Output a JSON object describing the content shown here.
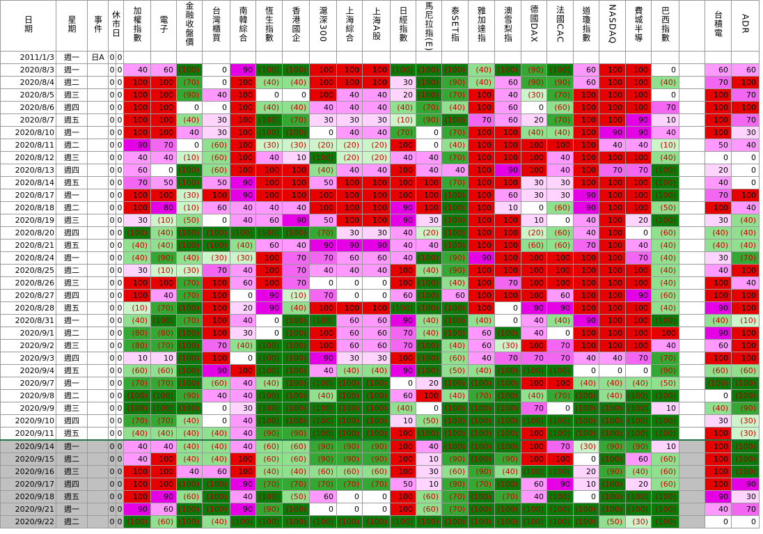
{
  "header": {
    "date": "日期",
    "weekday": "星期",
    "event": "事件",
    "holiday": "休市日",
    "markets": [
      "加權指數",
      "電子",
      "金融收盤價",
      "台灣櫃買",
      "南韓綜合",
      "恆生指數",
      "香港國企",
      "滬深300",
      "上海綜合",
      "上海A股",
      "日經指數",
      "馬尼拉指(E)",
      "泰SET指",
      "雅加達指",
      "澳雪梨指",
      "德國DAX",
      "法國CAC",
      "道瓊指數",
      "NASDAQ",
      "費城半導",
      "巴西指數",
      "台積電",
      "ADR"
    ]
  },
  "rows": [
    {
      "date": "2011/1/3",
      "weekday": "週一",
      "event": "日A",
      "holiday": [
        "0",
        "0"
      ]
    },
    {
      "date": "2020/8/3",
      "weekday": "週一",
      "holiday": [
        "0",
        "0"
      ],
      "values": [
        "40",
        "60",
        "(100)",
        "0",
        "90",
        "(100)",
        "(100)",
        "100",
        "100",
        "100",
        "(100)",
        "(100)",
        "(100)",
        "(40)",
        "(100)",
        "(90)",
        "(100)",
        "60",
        "100",
        "100",
        "0",
        "60",
        "60"
      ]
    },
    {
      "date": "2020/8/4",
      "weekday": "週二",
      "holiday": [
        "0",
        "0"
      ],
      "values": [
        "100",
        "100",
        "(70)",
        "0",
        "100",
        "(40)",
        "(40)",
        "100",
        "100",
        "100",
        "30",
        "(100)",
        "(90)",
        "(40)",
        "60",
        "(90)",
        "(90)",
        "60",
        "100",
        "100",
        "(40)",
        "70",
        "100"
      ]
    },
    {
      "date": "2020/8/5",
      "weekday": "週三",
      "holiday": [
        "0",
        "0"
      ],
      "values": [
        "100",
        "100",
        "(90)",
        "40",
        "100",
        "0",
        "0",
        "100",
        "40",
        "40",
        "20",
        "(100)",
        "(70)",
        "100",
        "40",
        "(30)",
        "(70)",
        "100",
        "100",
        "100",
        "0",
        "100",
        "70"
      ]
    },
    {
      "date": "2020/8/6",
      "weekday": "週四",
      "holiday": [
        "0",
        "0"
      ],
      "values": [
        "100",
        "100",
        "0",
        "0",
        "100",
        "(40)",
        "(40)",
        "40",
        "40",
        "40",
        "(40)",
        "(70)",
        "(40)",
        "100",
        "60",
        "0",
        "(60)",
        "100",
        "100",
        "100",
        "70",
        "100",
        "100"
      ]
    },
    {
      "date": "2020/8/7",
      "weekday": "週五",
      "holiday": [
        "0",
        "0"
      ],
      "values": [
        "100",
        "100",
        "(40)",
        "30",
        "100",
        "(100)",
        "(70)",
        "30",
        "30",
        "30",
        "(10)",
        "(90)",
        "(100)",
        "70",
        "60",
        "20",
        "(70)",
        "100",
        "100",
        "90",
        "10",
        "100",
        "70"
      ]
    },
    {
      "date": "2020/8/10",
      "weekday": "週一",
      "holiday": [
        "0",
        "0"
      ],
      "values": [
        "100",
        "100",
        "40",
        "30",
        "100",
        "(100)",
        "(100)",
        "0",
        "40",
        "40",
        "(70)",
        "0",
        "(70)",
        "100",
        "100",
        "(40)",
        "(40)",
        "100",
        "90",
        "90",
        "40",
        "100",
        "30"
      ]
    },
    {
      "date": "2020/8/11",
      "weekday": "週二",
      "holiday": [
        "0",
        "0"
      ],
      "values": [
        "90",
        "70",
        "0",
        "(60)",
        "100",
        "(30)",
        "(30)",
        "(20)",
        "(20)",
        "(20)",
        "100",
        "0",
        "(40)",
        "100",
        "100",
        "100",
        "100",
        "100",
        "40",
        "40",
        "(10)",
        "50",
        "40"
      ]
    },
    {
      "date": "2020/8/12",
      "weekday": "週三",
      "holiday": [
        "0",
        "0"
      ],
      "values": [
        "40",
        "40",
        "(10)",
        "(60)",
        "100",
        "40",
        "10",
        "(100)",
        "(20)",
        "(20)",
        "40",
        "40",
        "(70)",
        "100",
        "100",
        "100",
        "40",
        "100",
        "100",
        "100",
        "(40)",
        "0",
        "0"
      ]
    },
    {
      "date": "2020/8/13",
      "weekday": "週四",
      "holiday": [
        "0",
        "0"
      ],
      "values": [
        "60",
        "0",
        "(100)",
        "(60)",
        "100",
        "100",
        "100",
        "(40)",
        "40",
        "40",
        "100",
        "40",
        "40",
        "100",
        "90",
        "100",
        "40",
        "100",
        "70",
        "70",
        "(100)",
        "20",
        "0"
      ]
    },
    {
      "date": "2020/8/14",
      "weekday": "週五",
      "holiday": [
        "0",
        "0"
      ],
      "values": [
        "70",
        "50",
        "(100)",
        "50",
        "90",
        "100",
        "100",
        "50",
        "100",
        "100",
        "100",
        "100",
        "(70)",
        "100",
        "100",
        "30",
        "30",
        "100",
        "100",
        "100",
        "(100)",
        "40",
        "0"
      ]
    },
    {
      "date": "2020/8/17",
      "weekday": "週一",
      "holiday": [
        "0",
        "0"
      ],
      "values": [
        "100",
        "100",
        "(30)",
        "100",
        "90",
        "100",
        "100",
        "100",
        "100",
        "100",
        "100",
        "100",
        "(100)",
        "100",
        "60",
        "30",
        "30",
        "90",
        "100",
        "100",
        "(100)",
        "70",
        "100"
      ]
    },
    {
      "date": "2020/8/18",
      "weekday": "週二",
      "holiday": [
        "0",
        "0"
      ],
      "values": [
        "100",
        "80",
        "(10)",
        "60",
        "40",
        "40",
        "40",
        "100",
        "100",
        "100",
        "90",
        "100",
        "(100)",
        "100",
        "10",
        "0",
        "(60)",
        "90",
        "100",
        "100",
        "(50)",
        "100",
        "40"
      ]
    },
    {
      "date": "2020/8/19",
      "weekday": "週三",
      "holiday": [
        "0",
        "0"
      ],
      "values": [
        "30",
        "(10)",
        "(50)",
        "0",
        "40",
        "60",
        "90",
        "50",
        "100",
        "100",
        "90",
        "30",
        "(100)",
        "100",
        "100",
        "10",
        "0",
        "40",
        "100",
        "20",
        "(100)",
        "30",
        "(40)"
      ]
    },
    {
      "date": "2020/8/20",
      "weekday": "週四",
      "holiday": [
        "0",
        "0"
      ],
      "values": [
        "(100)",
        "(40)",
        "(100)",
        "(100)",
        "(100)",
        "(100)",
        "(100)",
        "(70)",
        "30",
        "30",
        "40",
        "(20)",
        "(100)",
        "100",
        "100",
        "(20)",
        "(60)",
        "40",
        "100",
        "0",
        "(60)",
        "(40)",
        "(40)"
      ]
    },
    {
      "date": "2020/8/21",
      "weekday": "週五",
      "holiday": [
        "0",
        "0"
      ],
      "values": [
        "(40)",
        "(40)",
        "(100)",
        "(100)",
        "(40)",
        "60",
        "40",
        "90",
        "90",
        "90",
        "40",
        "40",
        "(100)",
        "100",
        "100",
        "(60)",
        "(60)",
        "70",
        "100",
        "40",
        "(40)",
        "(40)",
        "(40)"
      ]
    },
    {
      "date": "2020/8/24",
      "weekday": "週一",
      "holiday": [
        "0",
        "0"
      ],
      "values": [
        "(40)",
        "(90)",
        "(40)",
        "(30)",
        "(30)",
        "100",
        "70",
        "70",
        "60",
        "60",
        "40",
        "(100)",
        "(90)",
        "90",
        "100",
        "100",
        "100",
        "100",
        "100",
        "70",
        "(40)",
        "30",
        "(70)"
      ]
    },
    {
      "date": "2020/8/25",
      "weekday": "週二",
      "holiday": [
        "0",
        "0"
      ],
      "values": [
        "30",
        "(10)",
        "(30)",
        "70",
        "40",
        "100",
        "70",
        "40",
        "40",
        "40",
        "100",
        "(40)",
        "(90)",
        "100",
        "100",
        "100",
        "100",
        "100",
        "100",
        "100",
        "(40)",
        "40",
        "100"
      ]
    },
    {
      "date": "2020/8/26",
      "weekday": "週三",
      "holiday": [
        "0",
        "0"
      ],
      "values": [
        "100",
        "100",
        "(70)",
        "100",
        "60",
        "100",
        "70",
        "0",
        "0",
        "0",
        "100",
        "(100)",
        "(40)",
        "100",
        "70",
        "100",
        "100",
        "100",
        "100",
        "100",
        "(40)",
        "100",
        "40"
      ]
    },
    {
      "date": "2020/8/27",
      "weekday": "週四",
      "holiday": [
        "0",
        "0"
      ],
      "values": [
        "100",
        "40",
        "(70)",
        "100",
        "0",
        "90",
        "(10)",
        "70",
        "0",
        "0",
        "60",
        "(100)",
        "60",
        "100",
        "100",
        "100",
        "60",
        "100",
        "100",
        "90",
        "(60)",
        "100",
        "100"
      ]
    },
    {
      "date": "2020/8/28",
      "weekday": "週五",
      "holiday": [
        "0",
        "0"
      ],
      "values": [
        "(10)",
        "(70)",
        "(100)",
        "100",
        "20",
        "90",
        "(40)",
        "100",
        "100",
        "100",
        "(100)",
        "(100)",
        "(100)",
        "100",
        "0",
        "90",
        "90",
        "100",
        "100",
        "100",
        "(40)",
        "90",
        "100"
      ]
    },
    {
      "date": "2020/8/31",
      "weekday": "週一",
      "holiday": [
        "0",
        "0"
      ],
      "values": [
        "(40)",
        "(100)",
        "(70)",
        "100",
        "40",
        "0",
        "(100)",
        "(100)",
        "60",
        "60",
        "90",
        "(40)",
        "(100)",
        "(40)",
        "0",
        "40",
        "(40)",
        "90",
        "100",
        "100",
        "(100)",
        "(40)",
        "(10)"
      ]
    },
    {
      "date": "2020/9/1",
      "weekday": "週二",
      "holiday": [
        "0",
        "0"
      ],
      "values": [
        "(80)",
        "(80)",
        "(100)",
        "100",
        "30",
        "0",
        "(100)",
        "100",
        "60",
        "60",
        "70",
        "(40)",
        "(100)",
        "60",
        "(100)",
        "40",
        "0",
        "100",
        "100",
        "100",
        "100",
        "90",
        "100"
      ]
    },
    {
      "date": "2020/9/2",
      "weekday": "週三",
      "holiday": [
        "0",
        "0"
      ],
      "values": [
        "(80)",
        "(70)",
        "(100)",
        "70",
        "(40)",
        "(100)",
        "(100)",
        "100",
        "60",
        "60",
        "70",
        "(100)",
        "(40)",
        "60",
        "(30)",
        "100",
        "70",
        "100",
        "100",
        "100",
        "40",
        "60",
        "100"
      ]
    },
    {
      "date": "2020/9/3",
      "weekday": "週四",
      "holiday": [
        "0",
        "0"
      ],
      "values": [
        "10",
        "10",
        "(100)",
        "100",
        "0",
        "(100)",
        "(100)",
        "90",
        "30",
        "30",
        "100",
        "(100)",
        "(60)",
        "40",
        "70",
        "70",
        "70",
        "40",
        "40",
        "70",
        "(70)",
        "100",
        "100"
      ]
    },
    {
      "date": "2020/9/4",
      "weekday": "週五",
      "holiday": [
        "0",
        "0"
      ],
      "values": [
        "(60)",
        "(60)",
        "(100)",
        "90",
        "100",
        "(100)",
        "(100)",
        "40",
        "(40)",
        "(40)",
        "90",
        "(100)",
        "(50)",
        "(40)",
        "(100)",
        "(100)",
        "(100)",
        "0",
        "0",
        "0",
        "(90)",
        "(60)",
        "(60)"
      ]
    },
    {
      "date": "2020/9/7",
      "weekday": "週一",
      "holiday": [
        "0",
        "0"
      ],
      "values": [
        "(70)",
        "(70)",
        "(100)",
        "(60)",
        "40",
        "(40)",
        "(100)",
        "(100)",
        "(100)",
        "(100)",
        "0",
        "20",
        "(100)",
        "(100)",
        "(100)",
        "100",
        "100",
        "(40)",
        "(40)",
        "(40)",
        "(50)",
        "(100)",
        "(100)"
      ]
    },
    {
      "date": "2020/9/8",
      "weekday": "週二",
      "holiday": [
        "0",
        "0"
      ],
      "values": [
        "(100)",
        "(100)",
        "(90)",
        "40",
        "40",
        "(100)",
        "(100)",
        "(40)",
        "(100)",
        "(100)",
        "60",
        "100",
        "(40)",
        "(70)",
        "(100)",
        "(40)",
        "(70)",
        "(100)",
        "(40)",
        "(100)",
        "(100)",
        "0",
        "(100)"
      ]
    },
    {
      "date": "2020/9/9",
      "weekday": "週三",
      "holiday": [
        "0",
        "0"
      ],
      "values": [
        "(100)",
        "(100)",
        "(100)",
        "0",
        "30",
        "(100)",
        "(100)",
        "(100)",
        "(100)",
        "(100)",
        "(40)",
        "0",
        "(100)",
        "(100)",
        "(100)",
        "70",
        "0",
        "(100)",
        "(100)",
        "(100)",
        "10",
        "(40)",
        "(90)"
      ]
    },
    {
      "date": "2020/9/10",
      "weekday": "週四",
      "holiday": [
        "0",
        "0"
      ],
      "values": [
        "(70)",
        "(70)",
        "(40)",
        "0",
        "40",
        "(100)",
        "(100)",
        "(100)",
        "(100)",
        "(100)",
        "10",
        "(50)",
        "(100)",
        "(100)",
        "(100)",
        "(100)",
        "(100)",
        "(100)",
        "(100)",
        "(100)",
        "(100)",
        "30",
        "(30)"
      ]
    },
    {
      "date": "2020/9/11",
      "weekday": "週五",
      "holiday": [
        "0",
        "0"
      ],
      "values": [
        "(40)",
        "(40)",
        "(40)",
        "(40)",
        "40",
        "(90)",
        "(90)",
        "(100)",
        "(100)",
        "(100)",
        "100",
        "(100)",
        "(100)",
        "(100)",
        "(100)",
        "100",
        "(100)",
        "(100)",
        "(100)",
        "(100)",
        "(100)",
        "100",
        "(30)"
      ]
    },
    {
      "date": "2020/9/14",
      "weekday": "週一",
      "holiday": [
        "0",
        "0"
      ],
      "values": [
        "40",
        "40",
        "(40)",
        "(40)",
        "40",
        "(60)",
        "(60)",
        "(90)",
        "(90)",
        "(90)",
        "100",
        "40",
        "(100)",
        "(100)",
        "(100)",
        "100",
        "70",
        "(30)",
        "(90)",
        "(90)",
        "10",
        "100",
        "(100)"
      ]
    },
    {
      "date": "2020/9/15",
      "weekday": "週二",
      "holiday": [
        "0",
        "0"
      ],
      "values": [
        "40",
        "100",
        "(40)",
        "(40)",
        "100",
        "(60)",
        "(60)",
        "(90)",
        "(90)",
        "(90)",
        "100",
        "10",
        "(90)",
        "(100)",
        "(90)",
        "100",
        "100",
        "0",
        "(100)",
        "60",
        "(60)",
        "100",
        "(100)"
      ]
    },
    {
      "date": "2020/9/16",
      "weekday": "週三",
      "holiday": [
        "0",
        "0"
      ],
      "values": [
        "100",
        "100",
        "40",
        "60",
        "100",
        "(40)",
        "(40)",
        "(60)",
        "(60)",
        "(60)",
        "100",
        "30",
        "(60)",
        "(90)",
        "(40)",
        "(100)",
        "(100)",
        "20",
        "(90)",
        "(40)",
        "(60)",
        "100",
        "(100)"
      ]
    },
    {
      "date": "2020/9/17",
      "weekday": "週四",
      "holiday": [
        "0",
        "0"
      ],
      "values": [
        "100",
        "100",
        "(100)",
        "(100)",
        "90",
        "(70)",
        "(70)",
        "(70)",
        "(70)",
        "(70)",
        "50",
        "10",
        "(90)",
        "(70)",
        "(100)",
        "60",
        "90",
        "10",
        "(100)",
        "20",
        "(60)",
        "100",
        "90"
      ]
    },
    {
      "date": "2020/9/18",
      "weekday": "週五",
      "holiday": [
        "0",
        "0"
      ],
      "values": [
        "100",
        "90",
        "(60)",
        "(100)",
        "40",
        "(100)",
        "(50)",
        "60",
        "0",
        "0",
        "100",
        "(60)",
        "(70)",
        "(100)",
        "(70)",
        "40",
        "(100)",
        "0",
        "(100)",
        "(100)",
        "(100)",
        "90",
        "30"
      ]
    },
    {
      "date": "2020/9/21",
      "weekday": "週一",
      "holiday": [
        "0",
        "0"
      ],
      "values": [
        "90",
        "60",
        "(100)",
        "(100)",
        "90",
        "(90)",
        "(100)",
        "0",
        "0",
        "0",
        "100",
        "(60)",
        "(70)",
        "(100)",
        "(100)",
        "(100)",
        "(100)",
        "(100)",
        "(100)",
        "(100)",
        "(100)",
        "40",
        "70"
      ]
    },
    {
      "date": "2020/9/22",
      "weekday": "週二",
      "holiday": [
        "0",
        "0"
      ],
      "values": [
        "(100)",
        "(60)",
        "(100)",
        "(40)",
        "(100)",
        "(100)",
        "(100)",
        "(100)",
        "(100)",
        "(100)",
        "(100)",
        "(100)",
        "(100)",
        "(100)",
        "(100)",
        "(100)",
        "(100)",
        "(100)",
        "(50)",
        "(30)",
        "(100)",
        "0",
        "0"
      ]
    }
  ]
}
